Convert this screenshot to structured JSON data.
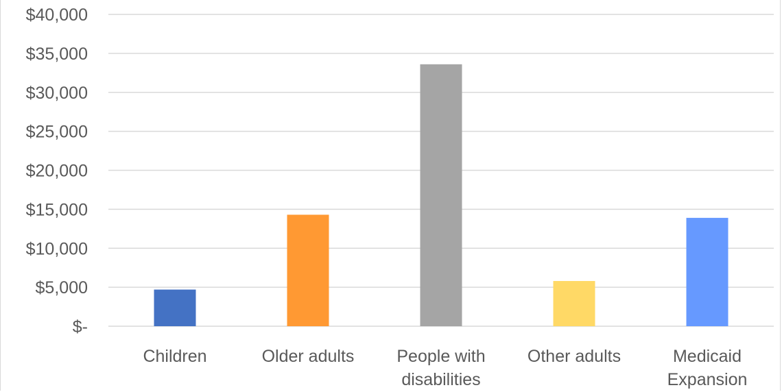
{
  "chart_data": {
    "type": "bar",
    "title": "",
    "xlabel": "",
    "ylabel": "",
    "ylim": [
      0,
      40000
    ],
    "yticks": [
      0,
      5000,
      10000,
      15000,
      20000,
      25000,
      30000,
      35000,
      40000
    ],
    "ytick_labels": [
      "$-",
      "$5,000",
      "$10,000",
      "$15,000",
      "$20,000",
      "$25,000",
      "$30,000",
      "$35,000",
      "$40,000"
    ],
    "grid": true,
    "legend": "none",
    "categories": [
      [
        "Children"
      ],
      [
        "Older adults"
      ],
      [
        "People with",
        "disabilities"
      ],
      [
        "Other adults"
      ],
      [
        "Medicaid",
        "Expansion"
      ]
    ],
    "values": [
      4700,
      14300,
      33600,
      5800,
      13900
    ],
    "colors": [
      "#4472c4",
      "#ff9933",
      "#a5a5a5",
      "#ffd966",
      "#6699ff"
    ]
  }
}
